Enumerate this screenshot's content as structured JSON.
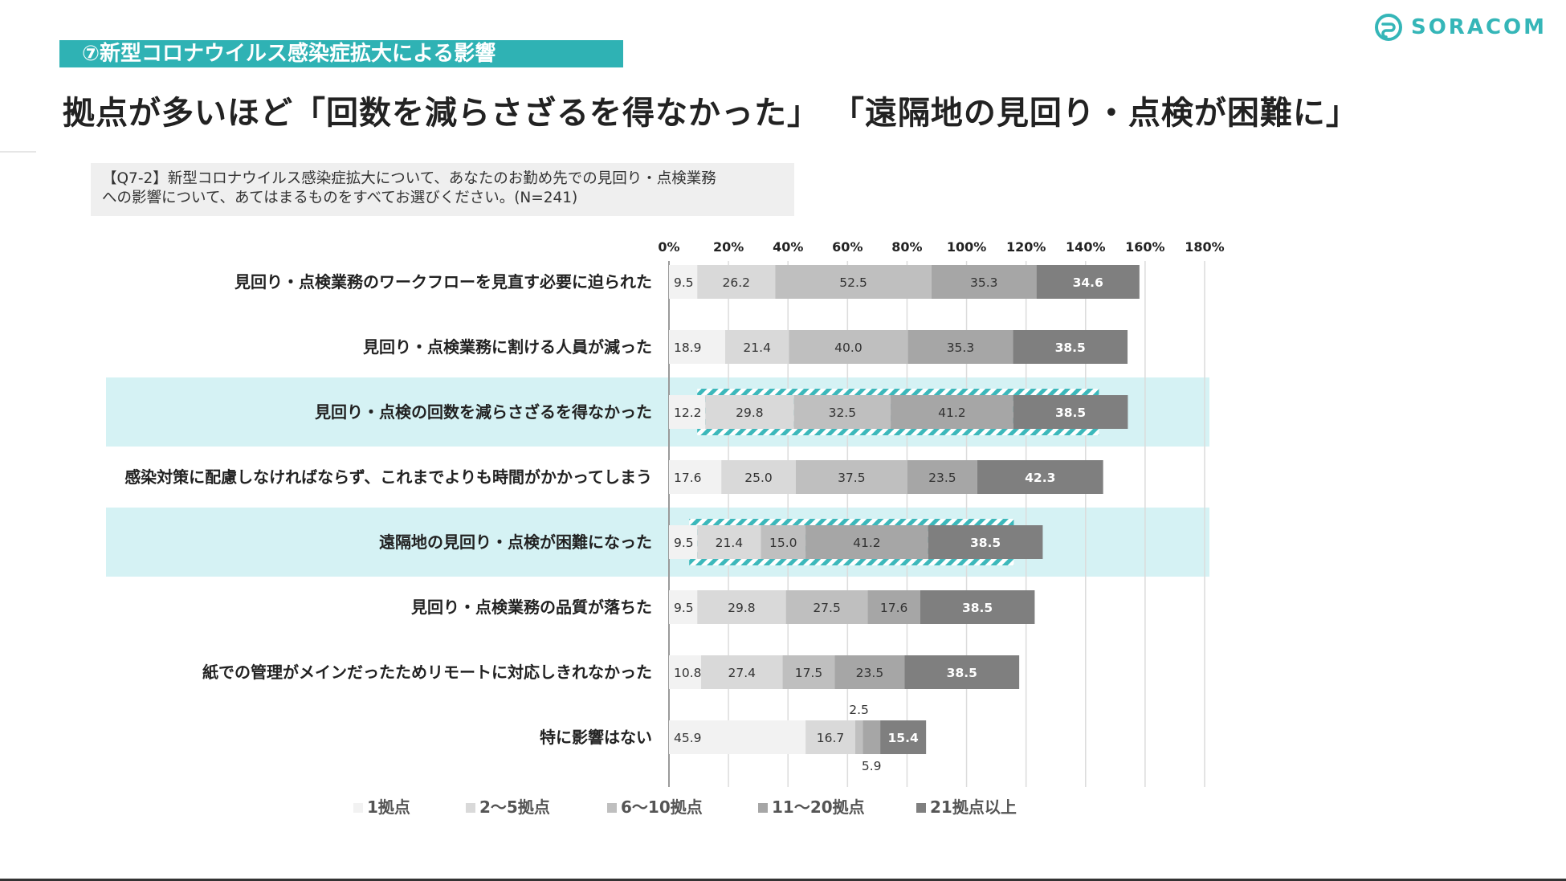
{
  "header": {
    "section_tag": "⑦新型コロナウイルス感染症拡大による影響",
    "headline": "拠点が多いほど「回数を減らさざるを得なかった」 「遠隔地の見回り・点検が困難に」",
    "logo_text": "SORACOM"
  },
  "question": {
    "line1": "【Q7-2】新型コロナウイルス感染症拡大について、あなたのお勤め先での見回り・点検業務",
    "line2": "への影響について、あてはまるものをすべてお選びください。(N=241)"
  },
  "colors": {
    "accent": "#2fb2b4",
    "highlight_row": "#d5f2f4",
    "series": [
      "#f2f2f2",
      "#d9d9d9",
      "#bfbfbf",
      "#a6a6a6",
      "#7f7f7f"
    ]
  },
  "chart_data": {
    "type": "bar",
    "orientation": "horizontal-stacked",
    "xlim": [
      0,
      180
    ],
    "x_ticks": [
      "0%",
      "20%",
      "40%",
      "60%",
      "80%",
      "100%",
      "120%",
      "140%",
      "160%",
      "180%"
    ],
    "grid": true,
    "legend_position": "bottom",
    "categories": [
      "見回り・点検業務のワークフローを見直す必要に迫られた",
      "見回り・点検業務に割ける人員が減った",
      "見回り・点検の回数を減らさざるを得なかった",
      "感染対策に配慮しなければならず、これまでよりも時間がかかってしまう",
      "遠隔地の見回り・点検が困難になった",
      "見回り・点検業務の品質が落ちた",
      "紙での管理がメインだったためリモートに対応しきれなかった",
      "特に影響はない"
    ],
    "highlighted_categories": [
      2,
      4
    ],
    "series": [
      {
        "name": "1拠点",
        "values": [
          9.5,
          18.9,
          12.2,
          17.6,
          9.5,
          9.5,
          10.8,
          45.9
        ]
      },
      {
        "name": "2〜5拠点",
        "values": [
          26.2,
          21.4,
          29.8,
          25.0,
          21.4,
          29.8,
          27.4,
          16.7
        ]
      },
      {
        "name": "6〜10拠点",
        "values": [
          52.5,
          40.0,
          32.5,
          37.5,
          15.0,
          27.5,
          17.5,
          2.5
        ]
      },
      {
        "name": "11〜20拠点",
        "values": [
          35.3,
          35.3,
          41.2,
          23.5,
          41.2,
          17.6,
          23.5,
          5.9
        ]
      },
      {
        "name": "21拠点以上",
        "values": [
          34.6,
          38.5,
          38.5,
          42.3,
          38.5,
          38.5,
          38.5,
          15.4
        ]
      }
    ]
  }
}
